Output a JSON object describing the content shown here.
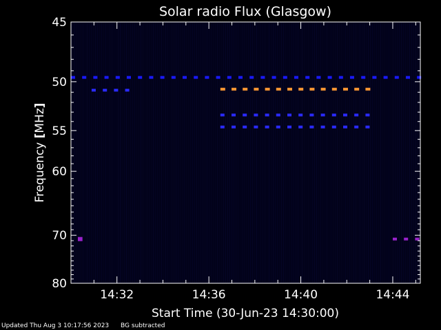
{
  "chart_data": {
    "type": "heatmap",
    "title": "Solar radio Flux (Glasgow)",
    "xlabel": "Start Time (30-Jun-23 14:30:00)",
    "ylabel_prefix": "Frequency ",
    "ylabel_unit": "MHz",
    "x_ticks": [
      "14:32",
      "14:36",
      "14:40",
      "14:44"
    ],
    "x_tick_minutes": [
      2,
      6,
      10,
      14
    ],
    "xlim_minutes": [
      0,
      15.2
    ],
    "y_ticks": [
      45,
      50,
      55,
      60,
      70,
      80
    ],
    "ylim": [
      45,
      80
    ],
    "y_scale": "reciprocal",
    "background_color": "#02021a",
    "features": [
      {
        "freq": 49.6,
        "start": 0,
        "end": 15.2,
        "color": "#1a1aff",
        "dashed": true,
        "intensity": "medium"
      },
      {
        "freq": 50.7,
        "start": 6.5,
        "end": 13.0,
        "color": "#ff9933",
        "dashed": true,
        "intensity": "high"
      },
      {
        "freq": 53.3,
        "start": 6.5,
        "end": 13.0,
        "color": "#2a2aff",
        "dashed": true,
        "intensity": "medium"
      },
      {
        "freq": 54.6,
        "start": 6.5,
        "end": 13.0,
        "color": "#2a2aff",
        "dashed": true,
        "intensity": "medium"
      },
      {
        "freq": 50.8,
        "start": 0.9,
        "end": 2.6,
        "color": "#2a2aff",
        "dashed": true,
        "intensity": "medium"
      },
      {
        "freq": 70.7,
        "start": 0.3,
        "end": 0.5,
        "color": "#9922cc",
        "dashed": false,
        "intensity": "medium"
      },
      {
        "freq": 70.7,
        "start": 14.0,
        "end": 15.2,
        "color": "#9922cc",
        "dashed": true,
        "intensity": "medium"
      }
    ],
    "colors": {
      "axis": "#ffffff",
      "text": "#ffffff"
    }
  },
  "footer": {
    "updated": "Updated Thu Aug  3 10:17:56 2023",
    "note": "BG subtracted"
  }
}
